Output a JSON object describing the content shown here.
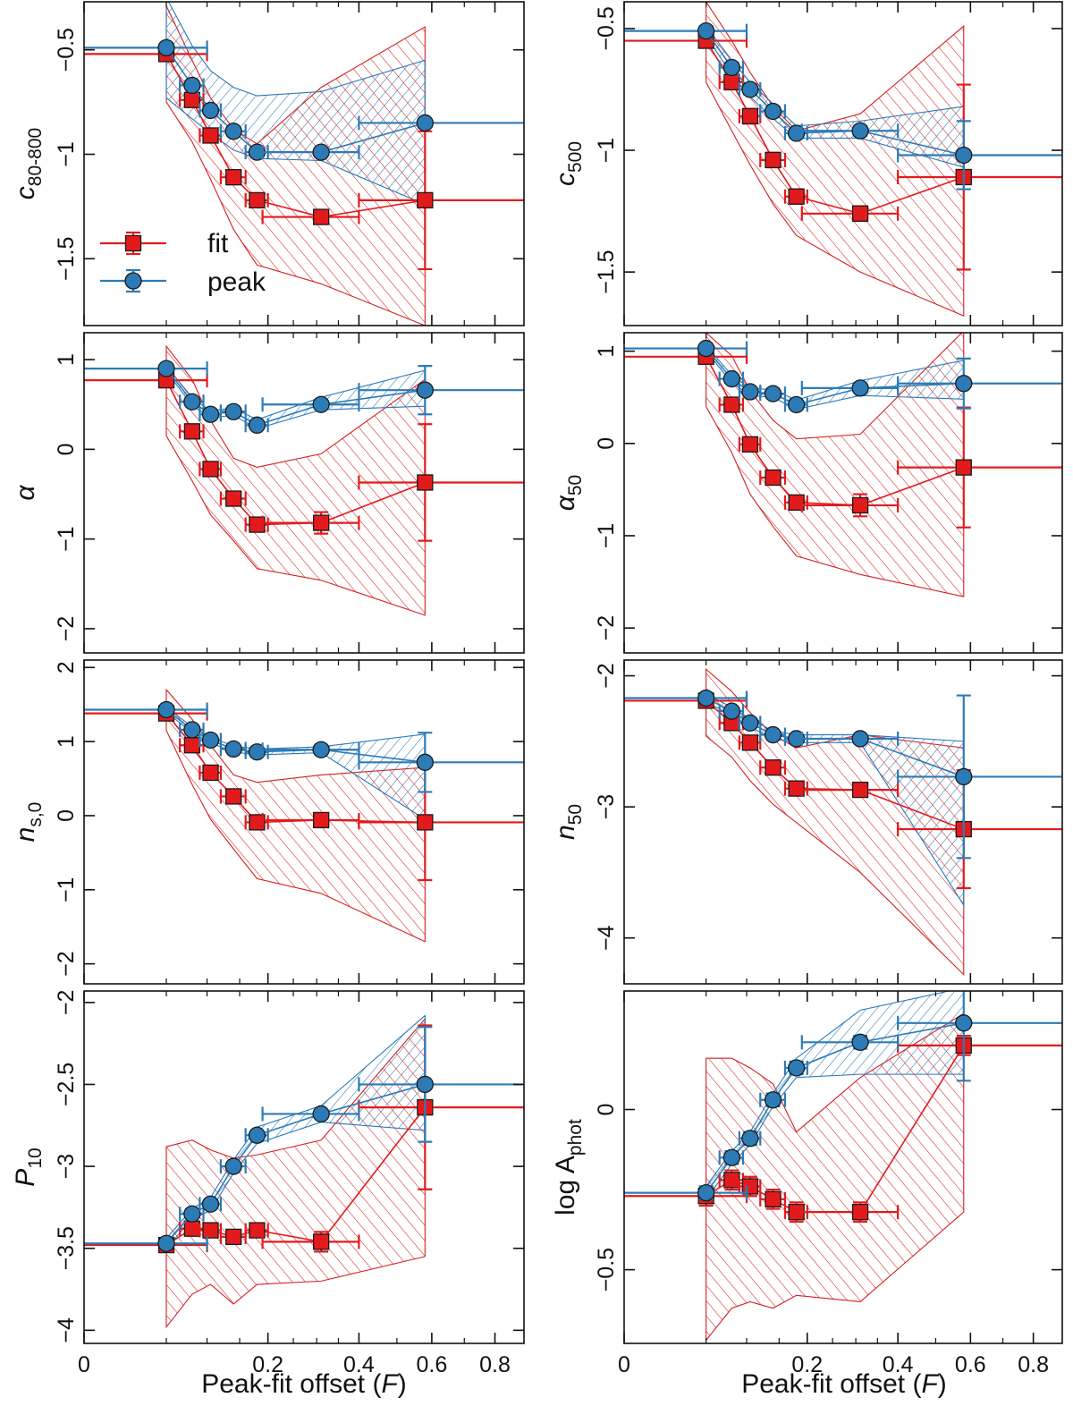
{
  "figure": {
    "xlabel_prefix": "Peak-fit offset (",
    "xlabel_var": "F",
    "xlabel_suffix": ")"
  },
  "legend": {
    "fit_label": "fit",
    "peak_label": "peak"
  },
  "colors": {
    "fit": "#e31a1c",
    "peak": "#2c7bb6",
    "fit_fill": "#d42020",
    "peak_fill": "#2a78b8",
    "marker_edge": "#1a1a1a"
  },
  "chart_data": [
    {
      "type": "scatter",
      "ylabel": {
        "main": "c",
        "sub": "80-800"
      },
      "ylim": [
        -1.82,
        -0.27
      ],
      "yticks": [
        -0.5,
        -1,
        -1.5
      ],
      "yticklabels": [
        "−0.5",
        "−1",
        "−1.5"
      ],
      "x": [
        0.05,
        0.08,
        0.105,
        0.14,
        0.18,
        0.31,
        0.58
      ],
      "xerr_lo": [
        0,
        0.065,
        0.09,
        0.12,
        0.16,
        0.19,
        0.4
      ],
      "xerr_hi": [
        0.1,
        0.095,
        0.12,
        0.16,
        0.2,
        0.4,
        1.0
      ],
      "fit": {
        "y": [
          -0.52,
          -0.74,
          -0.91,
          -1.11,
          -1.22,
          -1.3,
          -1.22
        ],
        "yerr": [
          0.03,
          0.03,
          0.03,
          0.03,
          0.03,
          0.03,
          0.33
        ],
        "band_lo": [
          -0.75,
          -0.94,
          -1.12,
          -1.36,
          -1.53,
          -1.62,
          -1.82
        ],
        "band_hi": [
          -0.29,
          -0.55,
          -0.73,
          -0.88,
          -0.95,
          -0.68,
          -0.39
        ]
      },
      "peak": {
        "y": [
          -0.49,
          -0.67,
          -0.79,
          -0.89,
          -0.99,
          -0.99,
          -0.85
        ],
        "yerr": [
          0.02,
          0.02,
          0.02,
          0.02,
          0.02,
          0.02,
          0.02
        ],
        "band_lo": [
          -0.73,
          -0.83,
          -0.9,
          -0.98,
          -1.02,
          -1.03,
          -1.24
        ],
        "band_hi": [
          -0.25,
          -0.48,
          -0.6,
          -0.68,
          -0.72,
          -0.7,
          -0.55
        ]
      }
    },
    {
      "type": "scatter",
      "ylabel": {
        "main": "c",
        "sub": "500"
      },
      "ylim": [
        -1.72,
        -0.39
      ],
      "yticks": [
        -0.5,
        -1,
        -1.5
      ],
      "yticklabels": [
        "−0.5",
        "−1",
        "−1.5"
      ],
      "x": [
        0.05,
        0.08,
        0.105,
        0.14,
        0.18,
        0.31,
        0.58
      ],
      "xerr_lo": [
        0,
        0.065,
        0.09,
        0.12,
        0.16,
        0.19,
        0.4
      ],
      "xerr_hi": [
        0.1,
        0.095,
        0.12,
        0.16,
        0.2,
        0.4,
        1.0
      ],
      "fit": {
        "y": [
          -0.55,
          -0.72,
          -0.86,
          -1.04,
          -1.19,
          -1.26,
          -1.11
        ],
        "yerr": [
          0.02,
          0.03,
          0.03,
          0.03,
          0.03,
          0.03,
          0.38
        ],
        "band_lo": [
          -0.72,
          -0.92,
          -1.06,
          -1.22,
          -1.35,
          -1.5,
          -1.68
        ],
        "band_hi": [
          -0.39,
          -0.55,
          -0.68,
          -0.82,
          -0.92,
          -0.85,
          -0.49
        ]
      },
      "peak": {
        "y": [
          -0.51,
          -0.66,
          -0.75,
          -0.84,
          -0.93,
          -0.92,
          -1.02
        ],
        "yerr": [
          0.02,
          0.02,
          0.02,
          0.02,
          0.02,
          0.02,
          0.14
        ],
        "band_lo": [
          -0.53,
          -0.69,
          -0.78,
          -0.87,
          -0.95,
          -0.95,
          -1.07
        ],
        "band_hi": [
          -0.49,
          -0.63,
          -0.72,
          -0.81,
          -0.9,
          -0.88,
          -0.82
        ]
      }
    },
    {
      "type": "scatter",
      "ylabel": {
        "main": "α",
        "sub": ""
      },
      "ylim": [
        -2.27,
        1.3
      ],
      "yticks": [
        1,
        0,
        -1,
        -2
      ],
      "yticklabels": [
        "1",
        "0",
        "−1",
        "−2"
      ],
      "x": [
        0.05,
        0.08,
        0.105,
        0.14,
        0.18,
        0.31,
        0.58
      ],
      "xerr_lo": [
        0,
        0.065,
        0.09,
        0.12,
        0.16,
        0.19,
        0.4
      ],
      "xerr_hi": [
        0.1,
        0.095,
        0.12,
        0.16,
        0.2,
        0.4,
        1.0
      ],
      "fit": {
        "y": [
          0.77,
          0.2,
          -0.22,
          -0.55,
          -0.84,
          -0.82,
          -0.37
        ],
        "yerr": [
          0.05,
          0.05,
          0.05,
          0.05,
          0.05,
          0.12,
          0.65
        ],
        "band_lo": [
          0.15,
          -0.35,
          -0.73,
          -1.02,
          -1.33,
          -1.46,
          -1.85
        ],
        "band_hi": [
          1.15,
          0.78,
          0.32,
          -0.1,
          -0.2,
          -0.05,
          0.78
        ]
      },
      "peak": {
        "y": [
          0.9,
          0.53,
          0.39,
          0.42,
          0.27,
          0.5,
          0.66
        ],
        "yerr": [
          0.03,
          0.03,
          0.03,
          0.03,
          0.03,
          0.03,
          0.27
        ],
        "band_lo": [
          0.87,
          0.49,
          0.35,
          0.38,
          0.23,
          0.44,
          0.48
        ],
        "band_hi": [
          0.93,
          0.57,
          0.43,
          0.46,
          0.33,
          0.58,
          0.88
        ]
      }
    },
    {
      "type": "scatter",
      "ylabel": {
        "main": "α",
        "sub": "50"
      },
      "ylim": [
        -2.27,
        1.2
      ],
      "yticks": [
        1,
        0,
        -1,
        -2
      ],
      "yticklabels": [
        "1",
        "0",
        "−1",
        "−2"
      ],
      "x": [
        0.05,
        0.08,
        0.105,
        0.14,
        0.18,
        0.31,
        0.58
      ],
      "xerr_lo": [
        0,
        0.065,
        0.09,
        0.12,
        0.16,
        0.19,
        0.4
      ],
      "xerr_hi": [
        0.1,
        0.095,
        0.12,
        0.16,
        0.2,
        0.4,
        1.0
      ],
      "fit": {
        "y": [
          0.94,
          0.42,
          -0.01,
          -0.37,
          -0.64,
          -0.67,
          -0.26
        ],
        "yerr": [
          0.05,
          0.05,
          0.05,
          0.05,
          0.05,
          0.12,
          0.65
        ],
        "band_lo": [
          0.4,
          -0.1,
          -0.55,
          -0.9,
          -1.22,
          -1.42,
          -1.66
        ],
        "band_hi": [
          1.2,
          0.95,
          0.57,
          0.25,
          0.05,
          0.1,
          1.22
        ]
      },
      "peak": {
        "y": [
          1.03,
          0.7,
          0.56,
          0.54,
          0.42,
          0.6,
          0.65
        ],
        "yerr": [
          0.03,
          0.03,
          0.03,
          0.03,
          0.03,
          0.03,
          0.27
        ],
        "band_lo": [
          1.0,
          0.66,
          0.52,
          0.5,
          0.37,
          0.52,
          0.48
        ],
        "band_hi": [
          1.06,
          0.74,
          0.6,
          0.58,
          0.47,
          0.68,
          0.9
        ]
      }
    },
    {
      "type": "scatter",
      "ylabel": {
        "main": "n",
        "sub": "s,0"
      },
      "ylim": [
        -2.27,
        2.1
      ],
      "yticks": [
        2,
        1,
        0,
        -1,
        -2
      ],
      "yticklabels": [
        "2",
        "1",
        "0",
        "−1",
        "−2"
      ],
      "x": [
        0.05,
        0.08,
        0.105,
        0.14,
        0.18,
        0.31,
        0.58
      ],
      "xerr_lo": [
        0,
        0.065,
        0.09,
        0.12,
        0.16,
        0.19,
        0.4
      ],
      "xerr_hi": [
        0.1,
        0.095,
        0.12,
        0.16,
        0.2,
        0.4,
        1.0
      ],
      "fit": {
        "y": [
          1.38,
          0.95,
          0.58,
          0.26,
          -0.09,
          -0.06,
          -0.09
        ],
        "yerr": [
          0.06,
          0.06,
          0.06,
          0.06,
          0.06,
          0.06,
          0.78
        ],
        "band_lo": [
          1.15,
          0.42,
          -0.05,
          -0.45,
          -0.85,
          -1.05,
          -1.7
        ],
        "band_hi": [
          1.7,
          1.3,
          0.95,
          0.55,
          0.45,
          0.55,
          0.65
        ]
      },
      "peak": {
        "y": [
          1.43,
          1.16,
          1.02,
          0.9,
          0.86,
          0.89,
          0.72
        ],
        "yerr": [
          0.03,
          0.03,
          0.03,
          0.03,
          0.03,
          0.03,
          0.4
        ],
        "band_lo": [
          1.4,
          1.12,
          0.98,
          0.86,
          0.82,
          0.85,
          -0.05
        ],
        "band_hi": [
          1.46,
          1.2,
          1.06,
          0.94,
          0.9,
          0.93,
          1.1
        ]
      }
    },
    {
      "type": "scatter",
      "ylabel": {
        "main": "n",
        "sub": "50"
      },
      "ylim": [
        -4.35,
        -1.88
      ],
      "yticks": [
        -2,
        -3,
        -4
      ],
      "yticklabels": [
        "−2",
        "−3",
        "−4"
      ],
      "x": [
        0.05,
        0.08,
        0.105,
        0.14,
        0.18,
        0.31,
        0.58
      ],
      "xerr_lo": [
        0,
        0.065,
        0.09,
        0.12,
        0.16,
        0.19,
        0.4
      ],
      "xerr_hi": [
        0.1,
        0.095,
        0.12,
        0.16,
        0.2,
        0.4,
        1.0
      ],
      "fit": {
        "y": [
          -2.19,
          -2.36,
          -2.51,
          -2.7,
          -2.86,
          -2.87,
          -3.17
        ],
        "yerr": [
          0.03,
          0.03,
          0.03,
          0.03,
          0.03,
          0.03,
          0.45
        ],
        "band_lo": [
          -2.46,
          -2.62,
          -2.8,
          -2.98,
          -3.12,
          -3.5,
          -4.28
        ],
        "band_hi": [
          -1.95,
          -2.12,
          -2.28,
          -2.45,
          -2.55,
          -2.45,
          -2.55
        ]
      },
      "peak": {
        "y": [
          -2.17,
          -2.27,
          -2.36,
          -2.45,
          -2.48,
          -2.48,
          -2.77
        ],
        "yerr": [
          0.02,
          0.02,
          0.02,
          0.02,
          0.02,
          0.02,
          0.62
        ],
        "band_lo": [
          -2.2,
          -2.3,
          -2.39,
          -2.48,
          -2.51,
          -2.51,
          -3.75
        ],
        "band_hi": [
          -2.14,
          -2.24,
          -2.33,
          -2.42,
          -2.45,
          -2.45,
          -2.5
        ]
      }
    },
    {
      "type": "scatter",
      "ylabel": {
        "main": "P",
        "sub": "10"
      },
      "ylim": [
        -4.08,
        -1.93
      ],
      "yticks": [
        -2,
        -2.5,
        -3,
        -3.5,
        -4
      ],
      "yticklabels": [
        "−2",
        "−2.5",
        "−3",
        "−3.5",
        "−4"
      ],
      "x": [
        0.05,
        0.08,
        0.105,
        0.14,
        0.18,
        0.31,
        0.58
      ],
      "xerr_lo": [
        0,
        0.065,
        0.09,
        0.12,
        0.16,
        0.19,
        0.4
      ],
      "xerr_hi": [
        0.1,
        0.095,
        0.12,
        0.16,
        0.2,
        0.4,
        1.0
      ],
      "fit": {
        "y": [
          -3.48,
          -3.38,
          -3.39,
          -3.43,
          -3.39,
          -3.46,
          -2.64
        ],
        "yerr": [
          0.03,
          0.03,
          0.03,
          0.03,
          0.03,
          0.06,
          0.5
        ],
        "band_lo": [
          -3.98,
          -3.78,
          -3.72,
          -3.84,
          -3.72,
          -3.7,
          -3.55
        ],
        "band_hi": [
          -2.88,
          -2.84,
          -2.9,
          -2.95,
          -2.93,
          -2.84,
          -2.1
        ]
      },
      "peak": {
        "y": [
          -3.47,
          -3.29,
          -3.23,
          -3.0,
          -2.81,
          -2.68,
          -2.5
        ],
        "yerr": [
          0.02,
          0.02,
          0.02,
          0.02,
          0.02,
          0.02,
          0.35
        ],
        "band_lo": [
          -3.5,
          -3.32,
          -3.27,
          -3.04,
          -2.86,
          -2.73,
          -2.78
        ],
        "band_hi": [
          -3.44,
          -3.26,
          -3.19,
          -2.96,
          -2.76,
          -2.63,
          -2.08
        ]
      }
    },
    {
      "type": "scatter",
      "ylabel": {
        "main": "log A",
        "sub": "phot"
      },
      "ylim": [
        -0.73,
        0.37
      ],
      "yticks": [
        0,
        -0.5
      ],
      "yticklabels": [
        "0",
        "−0.5"
      ],
      "x": [
        0.05,
        0.08,
        0.105,
        0.14,
        0.18,
        0.31,
        0.58
      ],
      "xerr_lo": [
        0,
        0.065,
        0.09,
        0.12,
        0.16,
        0.19,
        0.4
      ],
      "xerr_hi": [
        0.1,
        0.095,
        0.12,
        0.16,
        0.2,
        0.4,
        1.0
      ],
      "fit": {
        "y": [
          -0.27,
          -0.22,
          -0.24,
          -0.28,
          -0.32,
          -0.32,
          0.2
        ],
        "yerr": [
          0.03,
          0.03,
          0.03,
          0.03,
          0.03,
          0.03,
          0.03
        ],
        "band_lo": [
          -0.72,
          -0.62,
          -0.6,
          -0.62,
          -0.58,
          -0.6,
          -0.32
        ],
        "band_hi": [
          0.16,
          0.16,
          0.13,
          0.08,
          -0.07,
          0.1,
          0.3
        ]
      },
      "peak": {
        "y": [
          -0.26,
          -0.15,
          -0.09,
          0.03,
          0.13,
          0.21,
          0.27
        ],
        "yerr": [
          0.02,
          0.02,
          0.02,
          0.02,
          0.02,
          0.02,
          0.18
        ],
        "band_lo": [
          -0.28,
          -0.17,
          -0.11,
          0.01,
          0.1,
          0.11,
          0.11
        ],
        "band_hi": [
          -0.24,
          -0.13,
          -0.07,
          0.05,
          0.16,
          0.31,
          0.38
        ]
      }
    }
  ],
  "xaxis": {
    "ticks": [
      0,
      0.2,
      0.4,
      0.6,
      0.8
    ],
    "ticklabels": [
      "0",
      "0.2",
      "0.4",
      "0.6",
      "0.8"
    ]
  }
}
